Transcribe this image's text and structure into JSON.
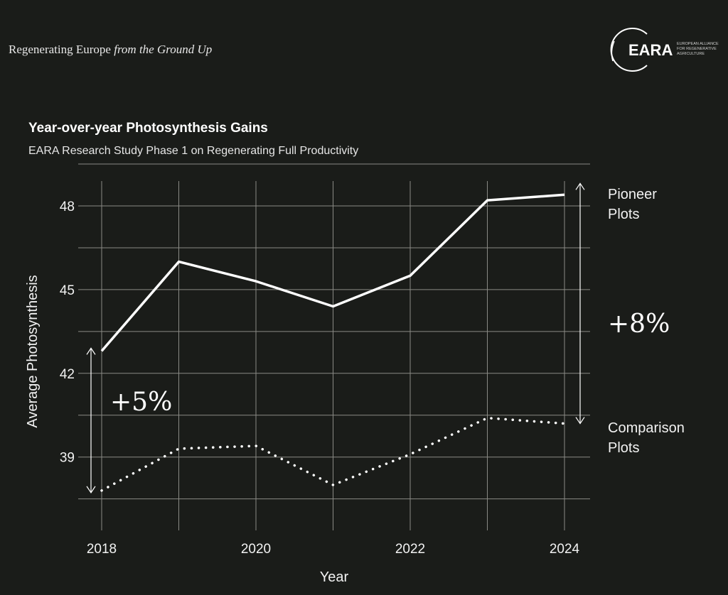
{
  "header": {
    "tagline_regular": "Regenerating Europe",
    "tagline_italic": "from the Ground Up",
    "logo_text": "EARA",
    "logo_subtext": [
      "EUROPEAN ALLIANCE",
      "FOR REGENERATIVE",
      "AGRICULTURE"
    ]
  },
  "chart_data": {
    "type": "line",
    "title": "Year-over-year Photosynthesis Gains",
    "subtitle": "EARA Research Study Phase 1 on Regenerating Full Productivity",
    "xlabel": "Year",
    "ylabel": "Average Photosynthesis",
    "x": [
      2018,
      2019,
      2020,
      2021,
      2022,
      2023,
      2024
    ],
    "x_ticks": [
      "2018",
      "2020",
      "2022",
      "2024"
    ],
    "y_ticks": [
      "39",
      "42",
      "45",
      "48"
    ],
    "ylim": [
      37.5,
      49.5
    ],
    "grid": true,
    "series": [
      {
        "name": "Pioneer Plots",
        "style": "solid",
        "values": [
          42.8,
          46.0,
          45.3,
          44.4,
          45.5,
          48.2,
          48.4
        ]
      },
      {
        "name": "Comparison Plots",
        "style": "dotted",
        "values": [
          37.8,
          39.3,
          39.4,
          38.0,
          39.1,
          40.4,
          40.2
        ]
      }
    ],
    "annotations": [
      {
        "text": "+5%",
        "at_year": 2018,
        "from": 37.8,
        "to": 42.8
      },
      {
        "text": "+8%",
        "at_year": 2024,
        "from": 40.2,
        "to": 48.4
      }
    ],
    "colors": {
      "background": "#1a1c19",
      "line": "#ffffff",
      "grid": "#8a8a85"
    }
  }
}
